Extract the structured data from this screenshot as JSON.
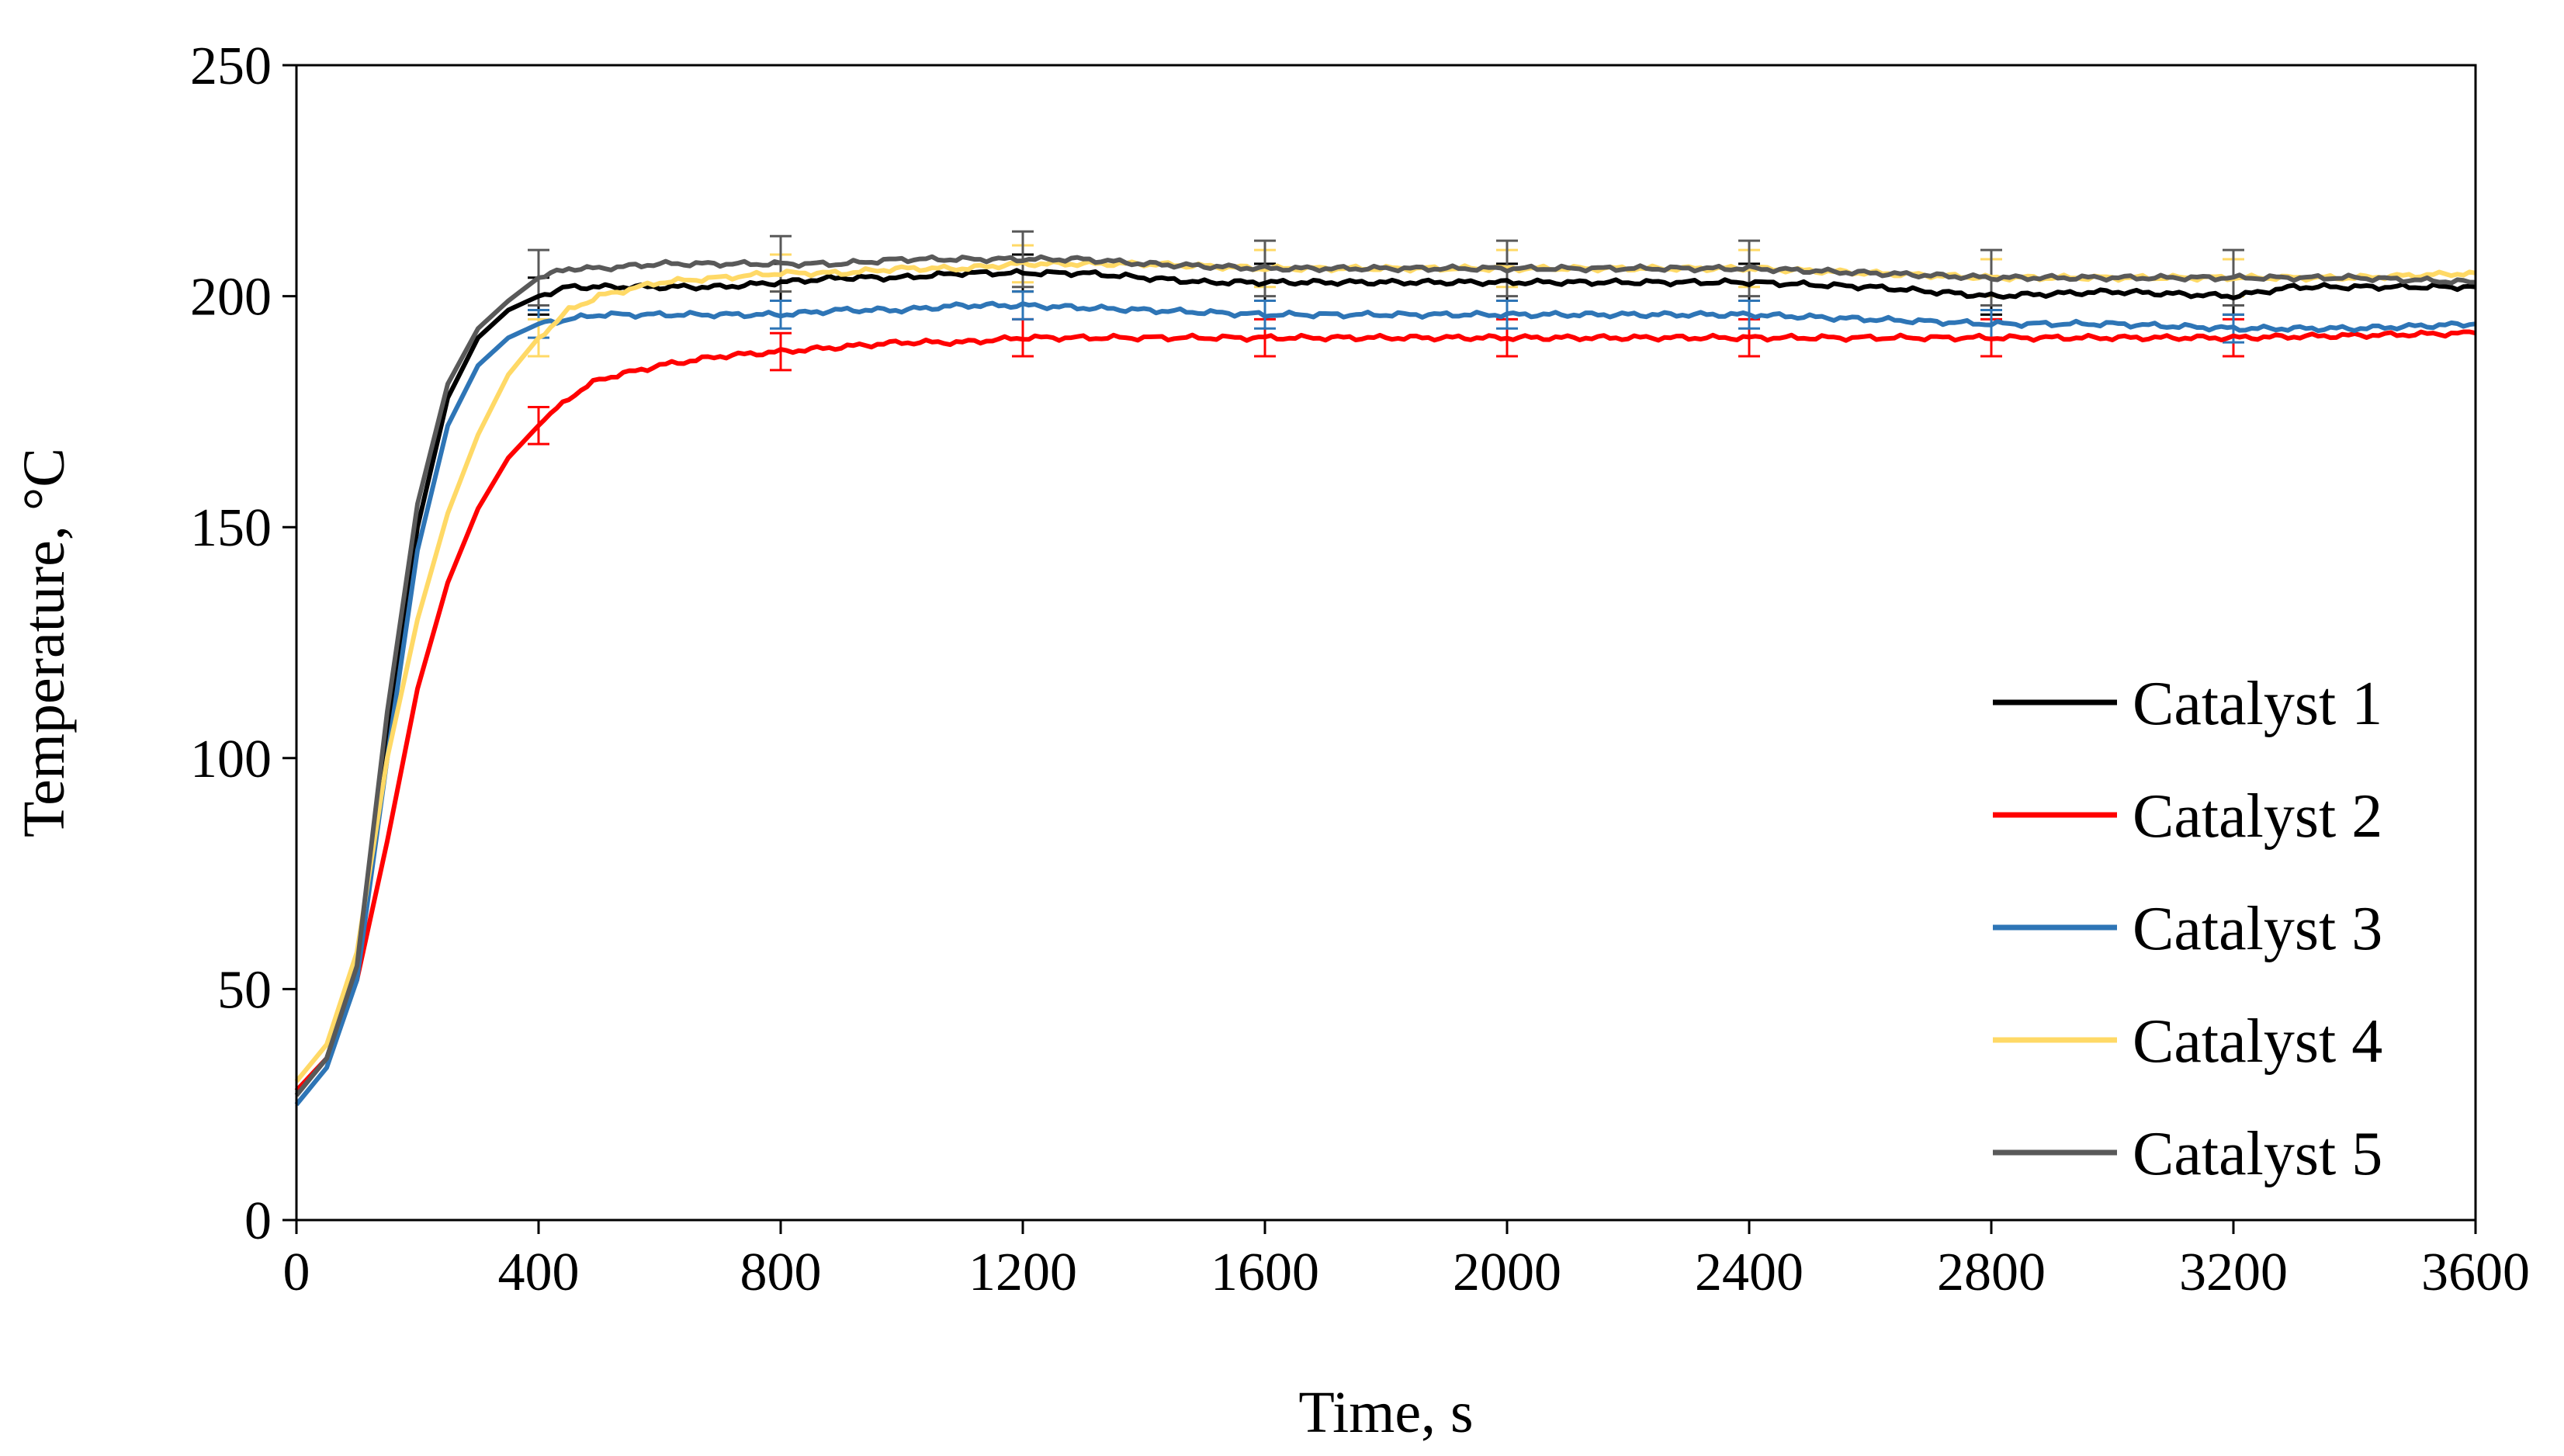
{
  "chart_data": {
    "type": "line",
    "title": "",
    "xlabel": "Time, s",
    "ylabel": "Temperature, °C",
    "xlim": [
      0,
      3600
    ],
    "ylim": [
      0,
      250
    ],
    "xticks": [
      0,
      400,
      800,
      1200,
      1600,
      2000,
      2400,
      2800,
      3200,
      3600
    ],
    "yticks": [
      0,
      50,
      100,
      150,
      200,
      250
    ],
    "grid": false,
    "legend_position": "bottom-right",
    "error_bar_x": [
      400,
      800,
      1200,
      1600,
      2000,
      2400,
      2800,
      3200
    ],
    "series": [
      {
        "name": "Catalyst 1",
        "color": "#000000",
        "x": [
          0,
          50,
          100,
          150,
          200,
          250,
          300,
          350,
          400,
          450,
          500,
          600,
          700,
          800,
          900,
          1000,
          1100,
          1200,
          1300,
          1400,
          1500,
          1600,
          1800,
          2000,
          2200,
          2400,
          2600,
          2800,
          3000,
          3200,
          3300,
          3400,
          3600
        ],
        "y": [
          28,
          35,
          55,
          105,
          150,
          178,
          191,
          197,
          200,
          202,
          202,
          202,
          202,
          203,
          204,
          204,
          205,
          205,
          205,
          204,
          203,
          203,
          203,
          203,
          203,
          203,
          202,
          200,
          201,
          200,
          202,
          202,
          202
        ],
        "error": 4
      },
      {
        "name": "Catalyst 2",
        "color": "#ff0000",
        "x": [
          0,
          50,
          100,
          150,
          200,
          250,
          300,
          350,
          400,
          450,
          500,
          600,
          700,
          800,
          900,
          1000,
          1100,
          1200,
          1400,
          1600,
          1800,
          2000,
          2400,
          2800,
          3200,
          3600
        ],
        "y": [
          28,
          35,
          52,
          82,
          115,
          138,
          154,
          165,
          172,
          178,
          182,
          185,
          187,
          188,
          189,
          190,
          190,
          191,
          191,
          191,
          191,
          191,
          191,
          191,
          191,
          192
        ],
        "error": 4
      },
      {
        "name": "Catalyst 3",
        "color": "#2e75b6",
        "x": [
          0,
          50,
          100,
          150,
          200,
          250,
          300,
          350,
          400,
          500,
          600,
          700,
          800,
          900,
          1000,
          1100,
          1200,
          1400,
          1600,
          1800,
          2000,
          2200,
          2400,
          2600,
          2800,
          3000,
          3200,
          3400,
          3600
        ],
        "y": [
          25,
          33,
          52,
          100,
          145,
          172,
          185,
          191,
          194,
          196,
          196,
          196,
          196,
          197,
          197,
          198,
          198,
          197,
          196,
          196,
          196,
          196,
          196,
          195,
          194,
          194,
          193,
          193,
          194
        ],
        "error": 3
      },
      {
        "name": "Catalyst 4",
        "color": "#ffd966",
        "x": [
          0,
          50,
          100,
          150,
          200,
          250,
          300,
          350,
          400,
          450,
          500,
          600,
          700,
          800,
          900,
          1000,
          1100,
          1200,
          1300,
          1400,
          1600,
          1800,
          2000,
          2200,
          2400,
          2600,
          2800,
          3000,
          3200,
          3400,
          3600
        ],
        "y": [
          30,
          38,
          58,
          100,
          130,
          153,
          170,
          183,
          191,
          197,
          200,
          203,
          204,
          205,
          205,
          206,
          206,
          207,
          207,
          207,
          206,
          206,
          206,
          206,
          206,
          205,
          204,
          204,
          204,
          204,
          205
        ],
        "error": 4
      },
      {
        "name": "Catalyst 5",
        "color": "#595959",
        "x": [
          0,
          50,
          100,
          150,
          200,
          250,
          300,
          350,
          400,
          450,
          500,
          600,
          700,
          800,
          900,
          1000,
          1100,
          1200,
          1300,
          1400,
          1600,
          1800,
          2000,
          2200,
          2400,
          2600,
          2800,
          3000,
          3200,
          3400,
          3600
        ],
        "y": [
          27,
          35,
          55,
          110,
          155,
          181,
          193,
          199,
          204,
          206,
          206,
          207,
          207,
          207,
          207,
          208,
          208,
          208,
          208,
          207,
          206,
          206,
          206,
          206,
          206,
          205,
          204,
          204,
          204,
          204,
          203
        ],
        "error": 6
      }
    ]
  }
}
